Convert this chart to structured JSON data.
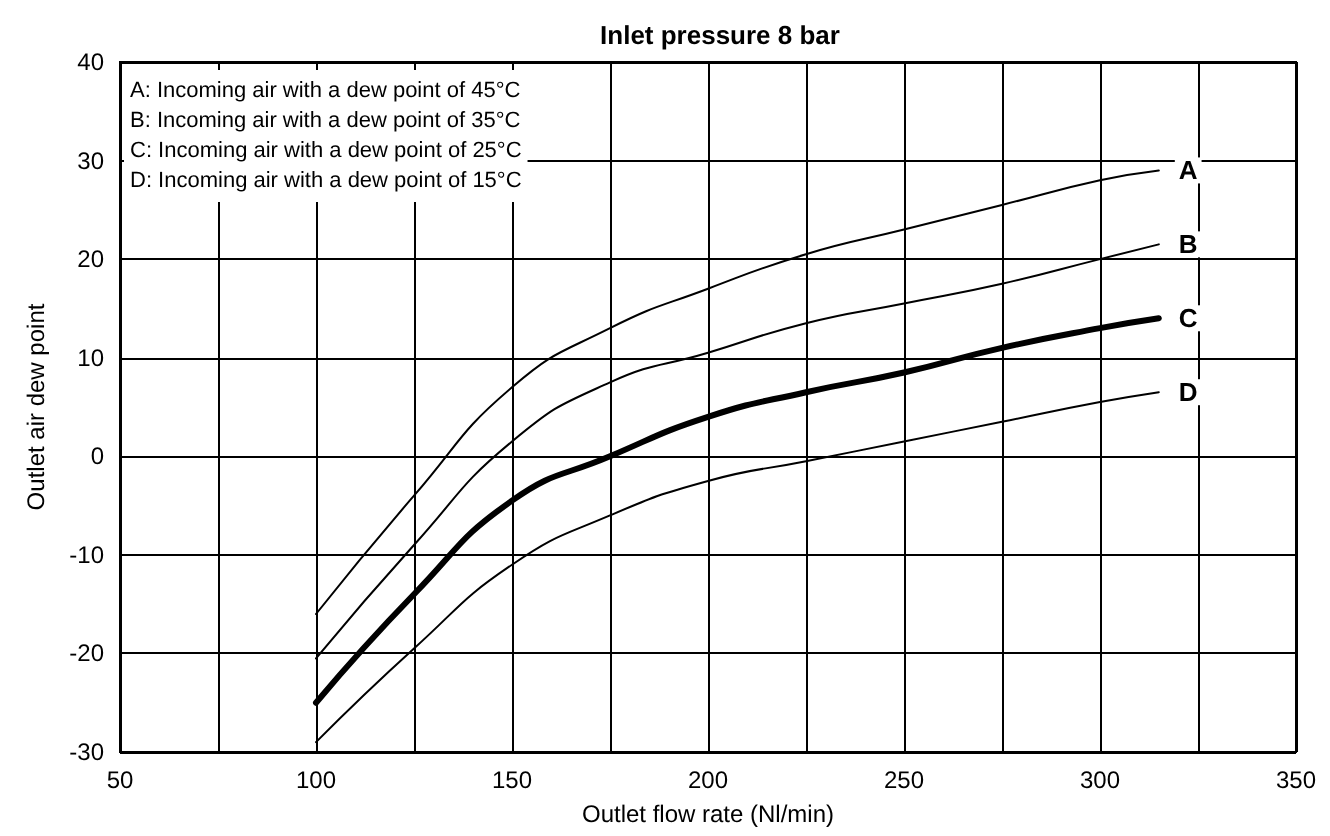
{
  "chart_data": {
    "type": "line",
    "title": "Inlet pressure 8 bar",
    "xlabel": "Outlet flow rate (Nl/min)",
    "ylabel": "Outlet air dew point",
    "annotations": [
      "A: Incoming air with a dew point of 45°C",
      "B: Incoming air with a dew point of 35°C",
      "C: Incoming air with a dew point of 25°C",
      "D: Incoming air with a dew point of 15°C"
    ],
    "x": [
      100,
      125,
      150,
      175,
      200,
      225,
      250,
      275,
      300,
      315
    ],
    "series": [
      {
        "name": "A",
        "color": "#000000",
        "values": [
          -16,
          -4,
          7,
          13,
          17,
          20.5,
          23,
          25.5,
          28,
          29
        ]
      },
      {
        "name": "B",
        "color": "#000000",
        "values": [
          -20.5,
          -9,
          1.5,
          7.5,
          10.5,
          13.5,
          15.5,
          17.5,
          20,
          21.5
        ]
      },
      {
        "name": "C",
        "color": "#000000",
        "values": [
          -25,
          -14,
          -4.5,
          0,
          4,
          6.5,
          8.5,
          11,
          13,
          14
        ]
      },
      {
        "name": "D",
        "color": "#000000",
        "values": [
          -29,
          -19.5,
          -11,
          -6,
          -2.5,
          -0.5,
          1.5,
          3.5,
          5.5,
          6.5
        ]
      }
    ],
    "xlim": [
      50,
      350
    ],
    "xticks": [
      50,
      {
        "value": 75,
        "label": null
      },
      100,
      {
        "value": 125,
        "label": null
      },
      150,
      {
        "value": 175,
        "label": null
      },
      200,
      {
        "value": 225,
        "label": null
      },
      250,
      {
        "value": 275,
        "label": null
      },
      300,
      {
        "value": 325,
        "label": null
      },
      350
    ],
    "ylim": [
      -30,
      40
    ],
    "yticks": [
      -30,
      -20,
      -10,
      0,
      10,
      20,
      30,
      40
    ],
    "grid": true,
    "legend": false,
    "marker": "none",
    "line_style": "solid"
  }
}
